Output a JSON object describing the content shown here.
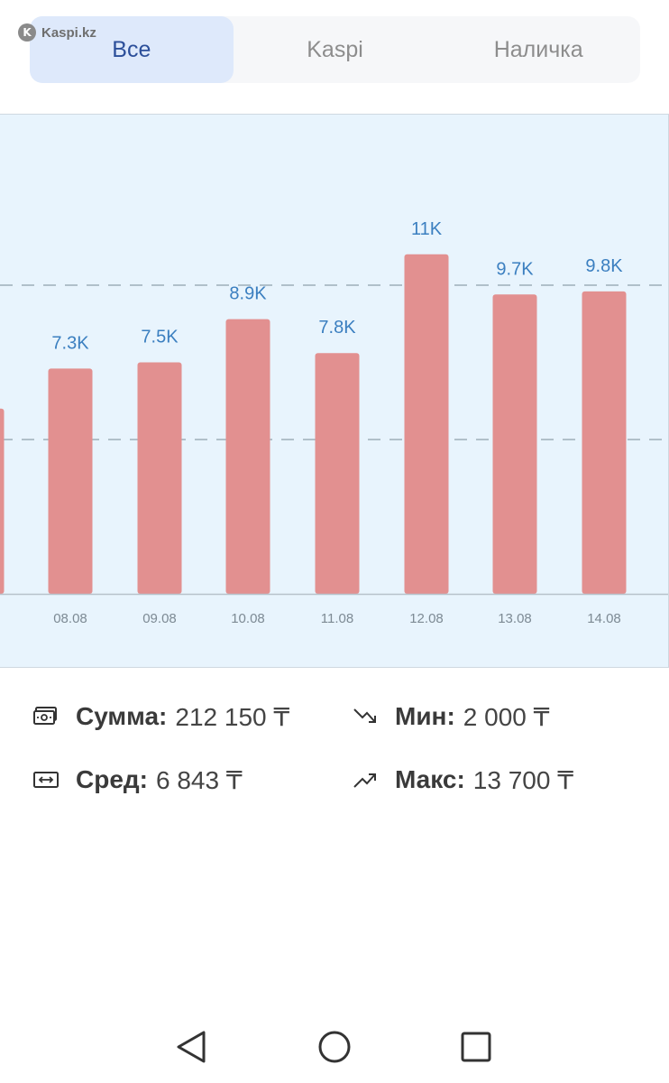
{
  "watermark": {
    "logo_letter": "K",
    "text": "Kaspi.kz"
  },
  "tabs": [
    {
      "label": "Все",
      "active": true
    },
    {
      "label": "Kaspi",
      "active": false
    },
    {
      "label": "Наличка",
      "active": false
    }
  ],
  "chart_data": {
    "type": "bar",
    "categories": [
      "",
      "08.08",
      "09.08",
      "10.08",
      "11.08",
      "12.08",
      "13.08",
      "14.08"
    ],
    "values": [
      6000,
      7300,
      7500,
      8900,
      7800,
      11000,
      9700,
      9800
    ],
    "data_labels": [
      "",
      "7.3K",
      "7.5K",
      "8.9K",
      "7.8K",
      "11K",
      "9.7K",
      "9.8K"
    ],
    "gridlines": [
      5000,
      10000
    ],
    "ylim": [
      0,
      15000
    ],
    "bar_color": "#e29090",
    "label_color": "#3b7fc0",
    "background": "#e8f4fd"
  },
  "stats": {
    "sum": {
      "label": "Сумма:",
      "value": "212 150 ₸",
      "icon": "cash-icon"
    },
    "min": {
      "label": "Мин:",
      "value": "2 000 ₸",
      "icon": "trend-down-icon"
    },
    "avg": {
      "label": "Сред:",
      "value": "6 843 ₸",
      "icon": "money-exchange-icon"
    },
    "max": {
      "label": "Макс:",
      "value": "13 700 ₸",
      "icon": "trend-up-icon"
    }
  },
  "navbar": {
    "back": "back-icon",
    "home": "home-icon",
    "recents": "recents-icon"
  }
}
